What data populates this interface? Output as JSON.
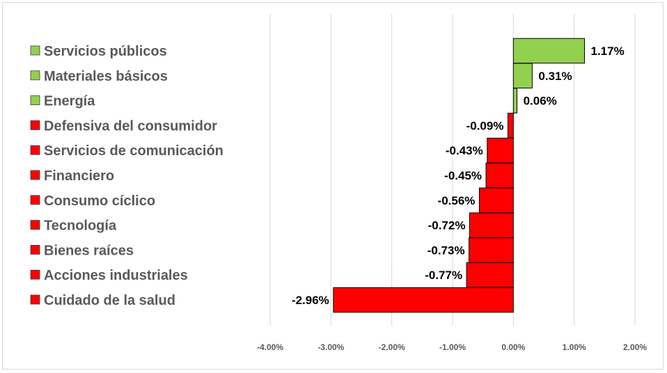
{
  "chart_data": {
    "type": "bar",
    "orientation": "horizontal",
    "categories": [
      "Servicios públicos",
      "Materiales básicos",
      "Energía",
      "Defensiva del consumidor",
      "Servicios de comunicación",
      "Financiero",
      "Consumo cíclico",
      "Tecnología",
      "Bienes raíces",
      "Acciones industriales",
      "Cuidado de la salud"
    ],
    "values": [
      1.17,
      0.31,
      0.06,
      -0.09,
      -0.43,
      -0.45,
      -0.56,
      -0.72,
      -0.73,
      -0.77,
      -2.96
    ],
    "value_labels": [
      "1.17%",
      "0.31%",
      "0.06%",
      "-0.09%",
      "-0.43%",
      "-0.45%",
      "-0.56%",
      "-0.72%",
      "-0.73%",
      "-0.77%",
      "-2.96%"
    ],
    "xlim": [
      -4,
      2
    ],
    "x_ticks": [
      -4,
      -3,
      -2,
      -1,
      0,
      1,
      2
    ],
    "x_tick_labels": [
      "-4.00%",
      "-3.00%",
      "-2.00%",
      "-1.00%",
      "0.00%",
      "1.00%",
      "2.00%"
    ],
    "grid": "vertical",
    "legend": "left",
    "colors": {
      "positive": "#92d050",
      "negative": "#ff0000",
      "grid": "#d9d9d9",
      "label": "#595959"
    }
  }
}
